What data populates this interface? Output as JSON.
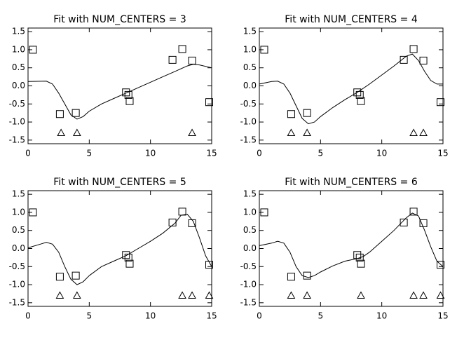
{
  "chart_data": [
    {
      "type": "line",
      "title": "Fit with NUM_CENTERS = 3",
      "color": "#000000",
      "xlim": [
        0,
        15
      ],
      "ylim": [
        -1.6,
        1.6
      ],
      "xticks": [
        0,
        5,
        10,
        15
      ],
      "yticks": [
        1.5,
        {
          "value": 1.0,
          "label": "1.0"
        },
        0.5,
        {
          "value": 0.0,
          "label": "0.0"
        },
        -0.5,
        {
          "value": -1.0,
          "label": "-1.0"
        },
        -1.5
      ],
      "points": {
        "x": [
          0.4,
          2.6,
          3.9,
          8.0,
          8.2,
          8.3,
          11.8,
          12.6,
          13.4,
          14.8
        ],
        "y": [
          1.0,
          -0.78,
          -0.75,
          -0.18,
          -0.25,
          -0.42,
          0.72,
          1.02,
          0.7,
          -0.45
        ]
      },
      "centers": {
        "x": [
          2.7,
          4.0,
          13.4
        ],
        "y": [
          -1.3,
          -1.3,
          -1.3
        ]
      },
      "fit": {
        "x": [
          0,
          1.5,
          2,
          2.5,
          3,
          3.5,
          4,
          4.5,
          5,
          6,
          7,
          8,
          9,
          10,
          11,
          12,
          13,
          13.5,
          14,
          15
        ],
        "y": [
          0.12,
          0.13,
          0.05,
          -0.2,
          -0.5,
          -0.8,
          -0.92,
          -0.85,
          -0.7,
          -0.5,
          -0.35,
          -0.2,
          -0.05,
          0.1,
          0.25,
          0.4,
          0.55,
          0.6,
          0.58,
          0.5
        ]
      }
    },
    {
      "type": "line",
      "title": "Fit with NUM_CENTERS = 4",
      "color": "#000000",
      "xlim": [
        0,
        15
      ],
      "ylim": [
        -1.6,
        1.6
      ],
      "xticks": [
        0,
        5,
        10,
        15
      ],
      "yticks": [
        1.5,
        {
          "value": 1.0,
          "label": "1.0"
        },
        0.5,
        {
          "value": 0.0,
          "label": "0.0"
        },
        -0.5,
        {
          "value": -1.0,
          "label": "-1.0"
        },
        -1.5
      ],
      "points": {
        "x": [
          0.4,
          2.6,
          3.9,
          8.0,
          8.2,
          8.3,
          11.8,
          12.6,
          13.4,
          14.8
        ],
        "y": [
          1.0,
          -0.78,
          -0.75,
          -0.18,
          -0.25,
          -0.42,
          0.72,
          1.02,
          0.7,
          -0.45
        ]
      },
      "centers": {
        "x": [
          2.6,
          3.9,
          12.6,
          13.4
        ],
        "y": [
          -1.3,
          -1.3,
          -1.3,
          -1.3
        ]
      },
      "fit": {
        "x": [
          0,
          1,
          1.5,
          2,
          2.5,
          3,
          3.5,
          4,
          4.5,
          5,
          6,
          7,
          8,
          9,
          10,
          11,
          12,
          12.5,
          13,
          13.5,
          14,
          14.5,
          15
        ],
        "y": [
          0.05,
          0.12,
          0.13,
          0.05,
          -0.2,
          -0.55,
          -0.9,
          -1.05,
          -1.0,
          -0.85,
          -0.6,
          -0.38,
          -0.18,
          0.05,
          0.3,
          0.55,
          0.82,
          0.88,
          0.7,
          0.4,
          0.15,
          0.05,
          0.05
        ]
      }
    },
    {
      "type": "line",
      "title": "Fit with NUM_CENTERS = 5",
      "color": "#000000",
      "xlim": [
        0,
        15
      ],
      "ylim": [
        -1.6,
        1.6
      ],
      "xticks": [
        0,
        5,
        10,
        15
      ],
      "yticks": [
        1.5,
        {
          "value": 1.0,
          "label": "1.0"
        },
        0.5,
        {
          "value": 0.0,
          "label": "0.0"
        },
        -0.5,
        {
          "value": -1.0,
          "label": "-1.0"
        },
        -1.5
      ],
      "points": {
        "x": [
          0.4,
          2.6,
          3.9,
          8.0,
          8.2,
          8.3,
          11.8,
          12.6,
          13.4,
          14.8
        ],
        "y": [
          1.0,
          -0.78,
          -0.75,
          -0.18,
          -0.25,
          -0.42,
          0.72,
          1.02,
          0.7,
          -0.45
        ]
      },
      "centers": {
        "x": [
          2.6,
          4.0,
          12.6,
          13.4,
          14.8
        ],
        "y": [
          -1.3,
          -1.3,
          -1.3,
          -1.3,
          -1.3
        ]
      },
      "fit": {
        "x": [
          0,
          1,
          1.5,
          2,
          2.5,
          3,
          3.5,
          4,
          4.5,
          5,
          6,
          7,
          8,
          9,
          10,
          11,
          12,
          12.5,
          13,
          13.5,
          14,
          14.5,
          15
        ],
        "y": [
          0.02,
          0.12,
          0.17,
          0.12,
          -0.1,
          -0.5,
          -0.85,
          -1.0,
          -0.92,
          -0.75,
          -0.5,
          -0.35,
          -0.2,
          0.0,
          0.2,
          0.42,
          0.7,
          0.92,
          0.95,
          0.75,
          0.3,
          -0.2,
          -0.5
        ]
      }
    },
    {
      "type": "line",
      "title": "Fit with NUM_CENTERS = 6",
      "color": "#000000",
      "xlim": [
        0,
        15
      ],
      "ylim": [
        -1.6,
        1.6
      ],
      "xticks": [
        0,
        5,
        10,
        15
      ],
      "yticks": [
        1.5,
        {
          "value": 1.0,
          "label": "1.0"
        },
        0.5,
        {
          "value": 0.0,
          "label": "0.0"
        },
        -0.5,
        {
          "value": -1.0,
          "label": "-1.0"
        },
        -1.5
      ],
      "points": {
        "x": [
          0.4,
          2.6,
          3.9,
          8.0,
          8.2,
          8.3,
          11.8,
          12.6,
          13.4,
          14.8
        ],
        "y": [
          1.0,
          -0.78,
          -0.75,
          -0.18,
          -0.25,
          -0.42,
          0.72,
          1.02,
          0.7,
          -0.45
        ]
      },
      "centers": {
        "x": [
          2.6,
          3.9,
          8.3,
          12.6,
          13.4,
          14.8
        ],
        "y": [
          -1.3,
          -1.3,
          -1.3,
          -1.3,
          -1.3,
          -1.3
        ]
      },
      "fit": {
        "x": [
          0,
          1,
          1.5,
          2,
          2.5,
          3,
          3.5,
          4,
          4.5,
          5,
          6,
          7,
          8,
          8.5,
          9,
          10,
          11,
          12,
          12.5,
          13,
          13.5,
          14,
          14.5,
          15
        ],
        "y": [
          0.08,
          0.15,
          0.2,
          0.15,
          -0.1,
          -0.5,
          -0.75,
          -0.8,
          -0.75,
          -0.65,
          -0.48,
          -0.35,
          -0.28,
          -0.22,
          -0.1,
          0.2,
          0.5,
          0.85,
          0.98,
          0.9,
          0.5,
          0.05,
          -0.35,
          -0.5
        ]
      }
    }
  ]
}
